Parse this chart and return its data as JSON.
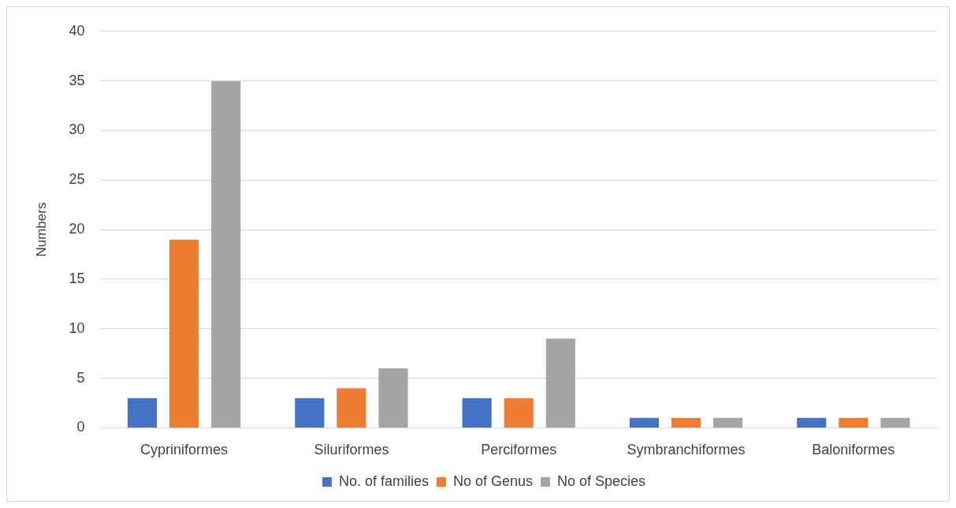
{
  "chart_data": {
    "type": "bar",
    "ylabel": "Numbers",
    "categories": [
      "Cypriniformes",
      "Siluriformes",
      "Perciformes",
      "Symbranchiformes",
      "Baloniformes"
    ],
    "series": [
      {
        "name": "No. of families",
        "color": "#4472c4",
        "values": [
          3,
          3,
          3,
          1,
          1
        ]
      },
      {
        "name": "No of Genus",
        "color": "#ed7d31",
        "values": [
          19,
          4,
          3,
          1,
          1
        ]
      },
      {
        "name": "No of Species",
        "color": "#a5a5a5",
        "values": [
          35,
          6,
          9,
          1,
          1
        ]
      }
    ],
    "ylim": [
      0,
      40
    ],
    "yticks": [
      0,
      5,
      10,
      15,
      20,
      25,
      30,
      35,
      40
    ],
    "grid": "y",
    "legend": "bottom"
  }
}
